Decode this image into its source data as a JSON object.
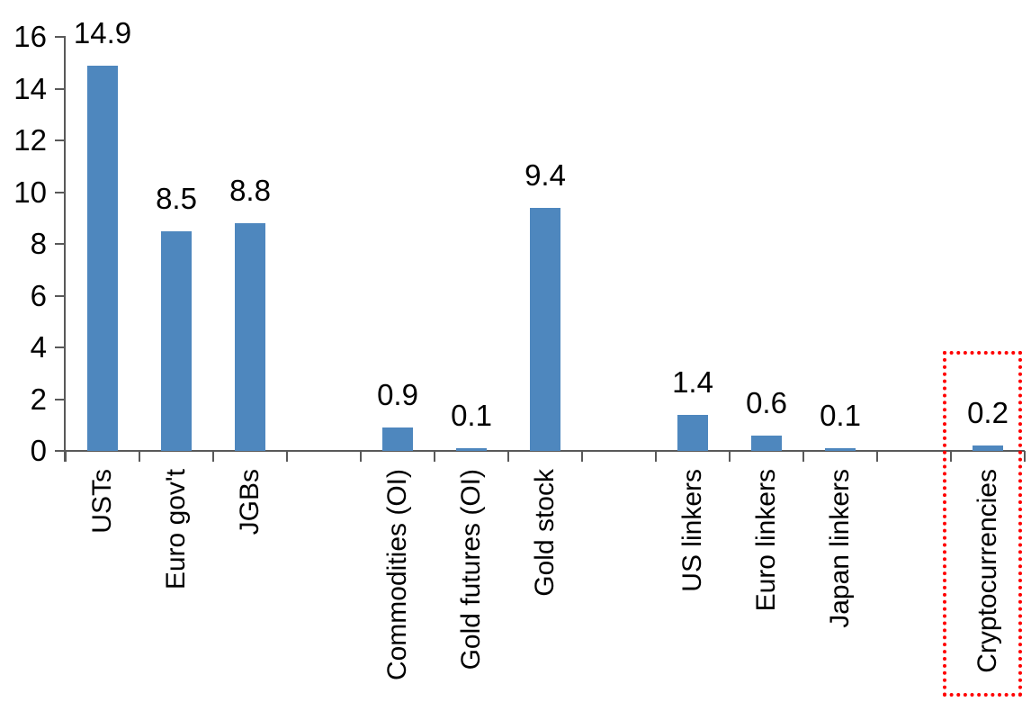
{
  "chart_data": {
    "type": "bar",
    "title": "",
    "xlabel": "",
    "ylabel": "",
    "categories": [
      "USTs",
      "Euro gov't",
      "JGBs",
      "Commodities (OI)",
      "Gold futures (OI)",
      "Gold stock",
      "US linkers",
      "Euro linkers",
      "Japan linkers",
      "Cryptocurrencies"
    ],
    "values": [
      14.9,
      8.5,
      8.8,
      0.9,
      0.1,
      9.4,
      1.4,
      0.6,
      0.1,
      0.2
    ],
    "value_labels": [
      "14.9",
      "8.5",
      "8.8",
      "0.9",
      "0.1",
      "9.4",
      "1.4",
      "0.6",
      "0.1",
      "0.2"
    ],
    "category_slots": [
      0,
      1,
      2,
      4,
      5,
      6,
      8,
      9,
      10,
      12
    ],
    "slots_total": 13,
    "ylim": [
      0,
      16
    ],
    "ytick_step": 2,
    "ytick_labels": [
      "0",
      "2",
      "4",
      "6",
      "8",
      "10",
      "12",
      "14",
      "16"
    ],
    "grid": false,
    "legend": false,
    "bar_color": "#4E87BE",
    "axis_color": "#595959",
    "text_color": "#000000",
    "highlight": {
      "category": "Cryptocurrencies",
      "style": "dotted-box",
      "color": "#FF0000"
    }
  }
}
